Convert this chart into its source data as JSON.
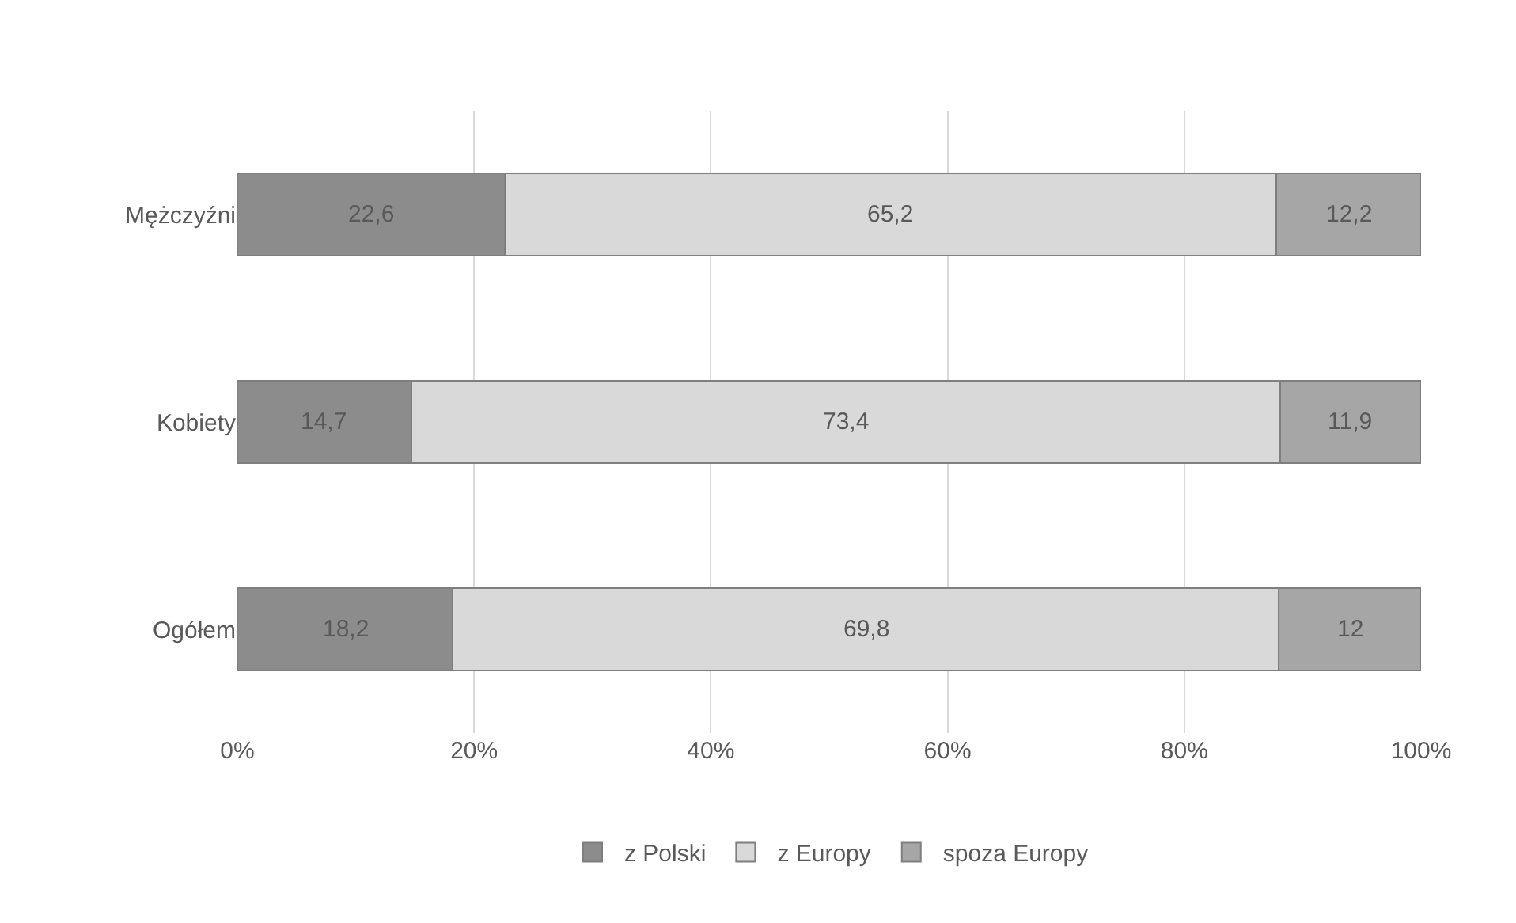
{
  "chart_data": {
    "type": "bar",
    "orientation": "horizontal",
    "stacked": true,
    "categories": [
      "Mężczyźni",
      "Kobiety",
      "Ogółem"
    ],
    "series": [
      {
        "name": "z Polski",
        "color": "#8c8c8c",
        "values": [
          22.6,
          14.7,
          18.2
        ],
        "value_labels": [
          "22,6",
          "14,7",
          "18,2"
        ]
      },
      {
        "name": "z Europy",
        "color": "#d9d9d9",
        "values": [
          65.2,
          73.4,
          69.8
        ],
        "value_labels": [
          "65,2",
          "73,4",
          "69,8"
        ]
      },
      {
        "name": "spoza Europy",
        "color": "#a6a6a6",
        "values": [
          12.2,
          11.9,
          12
        ],
        "value_labels": [
          "12,2",
          "11,9",
          "12"
        ]
      }
    ],
    "xlim": [
      0,
      100
    ],
    "xticks": [
      {
        "value": 0,
        "label": "0%"
      },
      {
        "value": 20,
        "label": "20%"
      },
      {
        "value": 40,
        "label": "40%"
      },
      {
        "value": 60,
        "label": "60%"
      },
      {
        "value": 80,
        "label": "80%"
      },
      {
        "value": 100,
        "label": "100%"
      }
    ],
    "grid": "x",
    "legend": "bottom"
  }
}
